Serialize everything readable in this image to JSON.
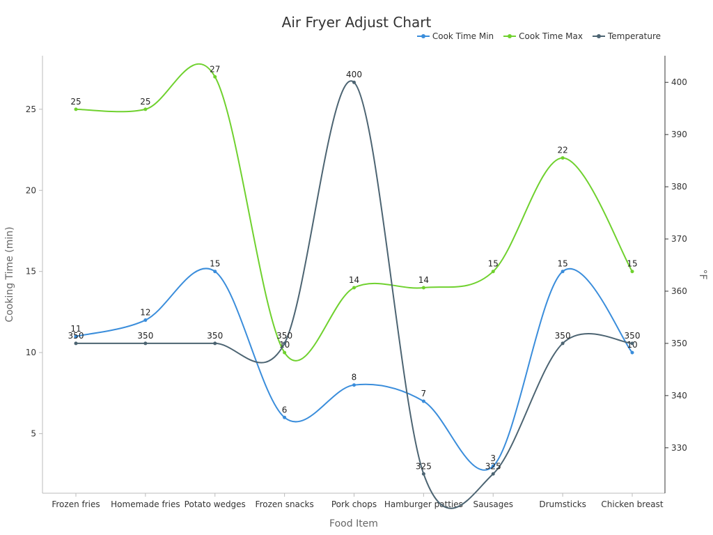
{
  "chart_data": {
    "type": "line",
    "title": "Air Fryer Adjust Chart",
    "xlabel": "Food Item",
    "ylabel": "Cooking Time (min)",
    "y2label": "°F",
    "categories": [
      "Frozen fries",
      "Homemade fries",
      "Potato wedges",
      "Frozen snacks",
      "Pork chops",
      "Hamburger patties",
      "Sausages",
      "Drumsticks",
      "Chicken breast"
    ],
    "ylim": [
      1.33,
      28.3
    ],
    "y2lim": [
      321.3,
      405.1
    ],
    "yticks": [
      5,
      10,
      15,
      20,
      25
    ],
    "y2ticks": [
      330,
      340,
      350,
      360,
      370,
      380,
      390,
      400
    ],
    "grid": false,
    "legend_position": "top-right",
    "series": [
      {
        "name": "Cook Time Min",
        "axis": "left",
        "color": "#3a8ddb",
        "values": [
          11,
          12,
          15,
          6,
          8,
          7,
          3,
          15,
          10
        ]
      },
      {
        "name": "Cook Time Max",
        "axis": "left",
        "color": "#6fd12e",
        "values": [
          25,
          25,
          27,
          10,
          14,
          14,
          15,
          22,
          15
        ]
      },
      {
        "name": "Temperature",
        "axis": "right",
        "color": "#4c6472",
        "values": [
          350,
          350,
          350,
          350,
          400,
          325,
          325,
          350,
          350
        ]
      }
    ]
  }
}
